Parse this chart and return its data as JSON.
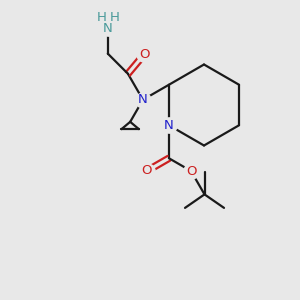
{
  "bg_color": "#e8e8e8",
  "bond_color": "#1a1a1a",
  "N_color": "#2020cc",
  "O_color": "#cc2020",
  "NH2_color": "#4a9a9a",
  "figsize": [
    3.0,
    3.0
  ],
  "dpi": 100,
  "xlim": [
    0,
    10
  ],
  "ylim": [
    0,
    10
  ]
}
